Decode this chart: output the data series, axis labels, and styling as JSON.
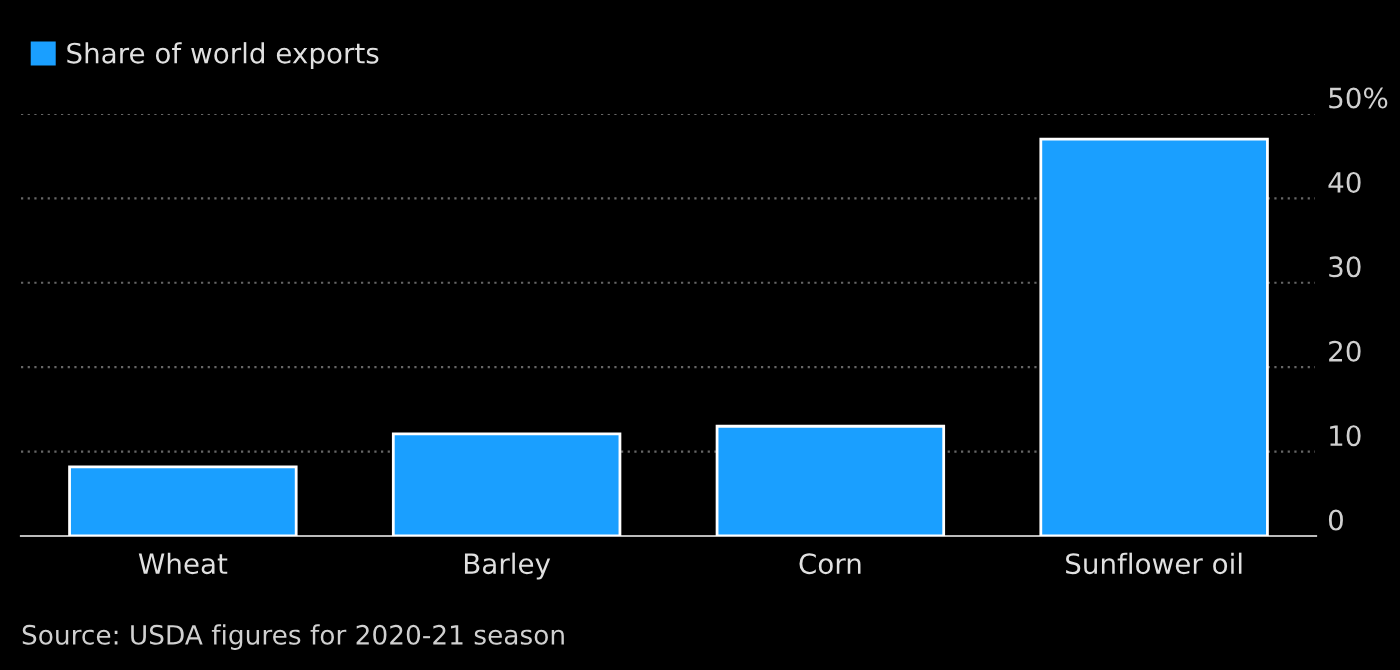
{
  "chart_data": {
    "type": "bar",
    "categories": [
      "Wheat",
      "Barley",
      "Corn",
      "Sunflower oil"
    ],
    "series": [
      {
        "name": "Share of world exports",
        "color": "#1a9fff",
        "values": [
          8.2,
          12.1,
          13.0,
          47.0
        ]
      }
    ],
    "ylim": [
      0,
      50
    ],
    "yticks": [
      0,
      10,
      20,
      30,
      40,
      {
        "value": 50,
        "label": "50%"
      }
    ],
    "grid": "y",
    "legend": "top left",
    "annotations": [
      "Source: USDA figures for 2020-21 season"
    ]
  }
}
